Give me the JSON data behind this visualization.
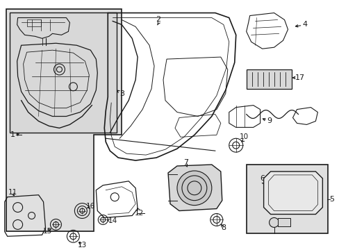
{
  "bg_color": "#ffffff",
  "line_color": "#1a1a1a",
  "shade_color": "#e0e0e0",
  "inner_shade": "#d8d8d8",
  "label_fontsize": 7.5,
  "fig_w": 4.89,
  "fig_h": 3.6,
  "dpi": 100
}
